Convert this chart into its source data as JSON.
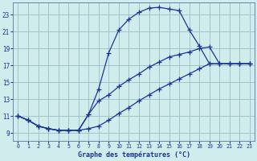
{
  "title": "Graphe des températures (°C)",
  "bg_color": "#d0ecec",
  "grid_color": "#a0c4c8",
  "line_color": "#1a3595",
  "markersize": 2.5,
  "linewidth": 0.9,
  "xlim": [
    -0.5,
    23.5
  ],
  "ylim": [
    8.0,
    24.5
  ],
  "xticks": [
    0,
    1,
    2,
    3,
    4,
    5,
    6,
    7,
    8,
    9,
    10,
    11,
    12,
    13,
    14,
    15,
    16,
    17,
    18,
    19,
    20,
    21,
    22,
    23
  ],
  "yticks": [
    9,
    11,
    13,
    15,
    17,
    19,
    21,
    23
  ],
  "curves": [
    [
      11.0,
      10.5,
      9.8,
      9.5,
      9.3,
      9.3,
      9.3,
      11.2,
      14.2,
      18.5,
      21.2,
      22.5,
      23.3,
      23.8,
      23.9,
      23.7,
      23.5,
      21.2,
      19.3,
      17.2,
      17.2,
      17.2,
      17.2,
      17.2
    ],
    [
      11.0,
      10.5,
      9.8,
      9.5,
      9.3,
      9.3,
      9.3,
      11.2,
      12.8,
      13.5,
      14.5,
      15.3,
      16.0,
      16.8,
      17.4,
      18.0,
      18.3,
      18.6,
      19.0,
      19.2,
      17.2,
      17.2,
      17.2,
      17.2
    ],
    [
      11.0,
      10.5,
      9.8,
      9.5,
      9.3,
      9.3,
      9.3,
      9.5,
      9.8,
      10.5,
      11.3,
      12.0,
      12.8,
      13.5,
      14.2,
      14.8,
      15.4,
      16.0,
      16.6,
      17.2,
      17.2,
      17.2,
      17.2,
      17.2
    ]
  ]
}
